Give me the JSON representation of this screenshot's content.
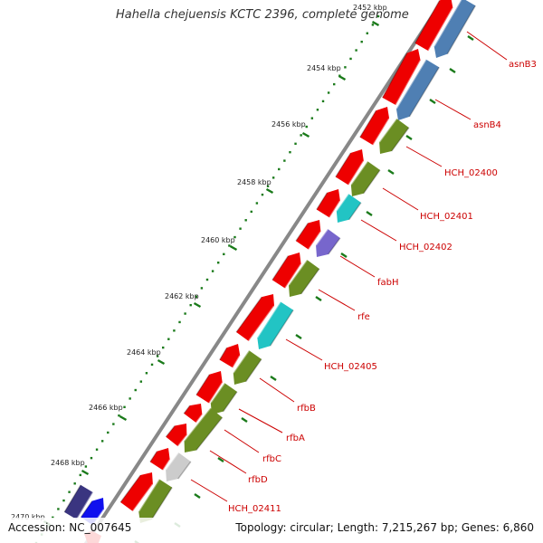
{
  "title": "Hahella chejuensis KCTC 2396, complete genome",
  "footer": {
    "accession": "Accession: NC_007645",
    "summary": "Topology: circular; Length: 7,215,267 bp; Genes: 6,860"
  },
  "ticks": [
    "2452 kbp",
    "2454 kbp",
    "2456 kbp",
    "2458 kbp",
    "2460 kbp",
    "2462 kbp",
    "2464 kbp",
    "2466 kbp",
    "2468 kbp",
    "2470 kbp"
  ],
  "gene_labels": [
    "asnB3",
    "asnB4",
    "HCH_02400",
    "HCH_02401",
    "HCH_02402",
    "fabH",
    "rfe",
    "HCH_02405",
    "rfbB",
    "rfbA",
    "rfbC",
    "rfbD",
    "HCH_02411"
  ],
  "colors": {
    "forward_cds": "#ee0000",
    "reverse_cds": "#6b8e23",
    "blue_cds": "#4f7fb3",
    "cyan_cds": "#22c4c4",
    "purple_cds": "#7766cc",
    "gray_cds": "#cccccc",
    "navy_cds": "#3a3580",
    "bright_blue_cds": "#1010ee",
    "tick_green": "#1a7a1a",
    "backbone": "#888888",
    "label_red": "#cc0000"
  }
}
